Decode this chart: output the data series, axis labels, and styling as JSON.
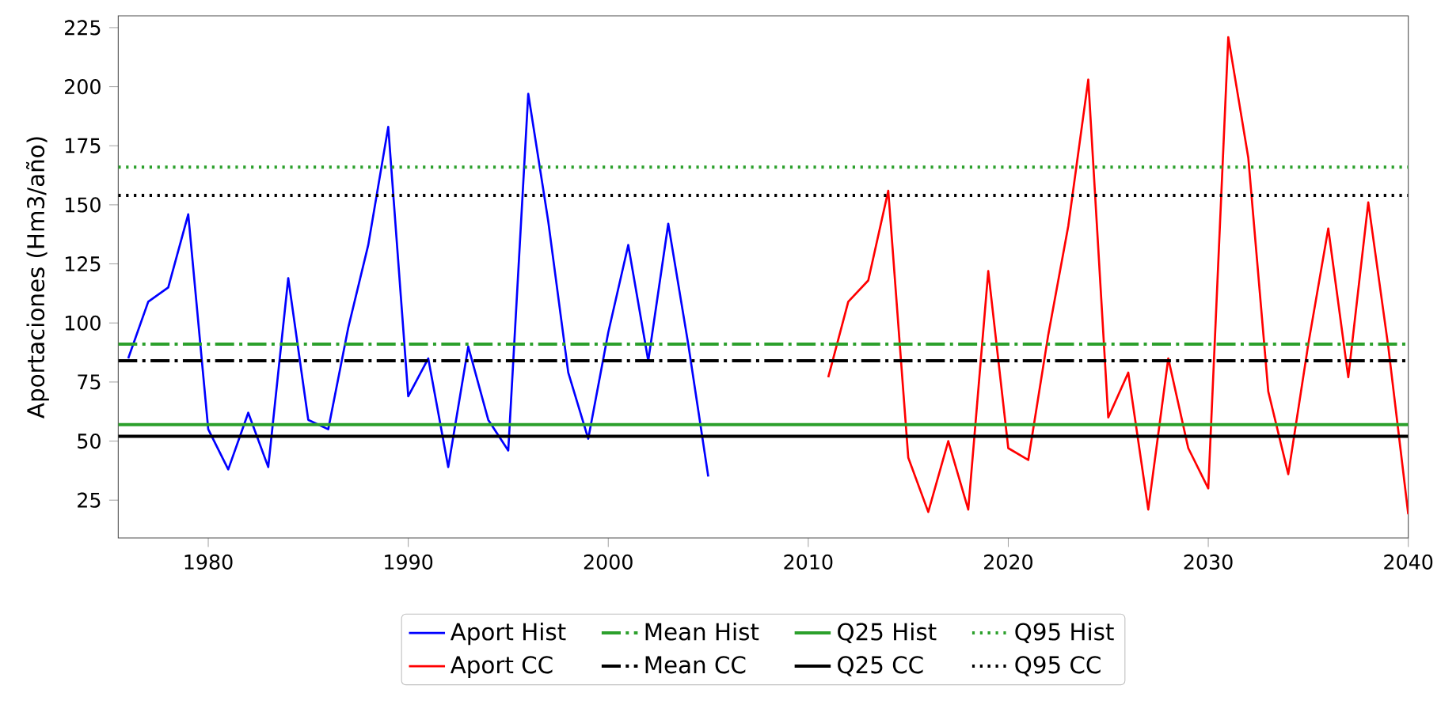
{
  "chart_data": {
    "type": "line",
    "ylabel": "Aportaciones (Hm3/año)",
    "xlim": [
      1975.5,
      2040
    ],
    "ylim": [
      9,
      230
    ],
    "xticks": [
      1980,
      1990,
      2000,
      2010,
      2020,
      2030,
      2040
    ],
    "yticks": [
      25,
      50,
      75,
      100,
      125,
      150,
      175,
      200,
      225
    ],
    "series": [
      {
        "name": "Aport Hist",
        "color": "#0000ff",
        "x": [
          1976,
          1977,
          1978,
          1979,
          1980,
          1981,
          1982,
          1983,
          1984,
          1985,
          1986,
          1987,
          1988,
          1989,
          1990,
          1991,
          1992,
          1993,
          1994,
          1995,
          1996,
          1997,
          1998,
          1999,
          2000,
          2001,
          2002,
          2003,
          2004,
          2005
        ],
        "values": [
          85,
          109,
          115,
          146,
          55,
          38,
          62,
          39,
          119,
          59,
          55,
          98,
          133,
          183,
          69,
          85,
          39,
          90,
          59,
          46,
          197,
          143,
          79,
          51,
          96,
          133,
          84,
          142,
          91,
          35
        ]
      },
      {
        "name": "Aport CC",
        "color": "#ff0000",
        "x": [
          2011,
          2012,
          2013,
          2014,
          2015,
          2016,
          2017,
          2018,
          2019,
          2020,
          2021,
          2022,
          2023,
          2024,
          2025,
          2026,
          2027,
          2028,
          2029,
          2030,
          2031,
          2032,
          2033,
          2034,
          2035,
          2036,
          2037,
          2038,
          2039,
          2040
        ],
        "values": [
          77,
          109,
          118,
          156,
          43,
          20,
          50,
          21,
          122,
          47,
          42,
          95,
          141,
          203,
          60,
          79,
          21,
          85,
          47,
          30,
          221,
          170,
          71,
          36,
          91,
          140,
          77,
          151,
          90,
          19
        ]
      }
    ],
    "ref_lines": [
      {
        "axis": "y",
        "value": 91,
        "label": "Mean Hist",
        "color": "#2ca02c",
        "line_style": "dashdot"
      },
      {
        "axis": "y",
        "value": 84,
        "label": "Mean CC",
        "color": "#000000",
        "line_style": "dashdot"
      },
      {
        "axis": "y",
        "value": 57,
        "label": "Q25 Hist",
        "color": "#2ca02c",
        "line_style": "solid"
      },
      {
        "axis": "y",
        "value": 52,
        "label": "Q25 CC",
        "color": "#000000",
        "line_style": "solid"
      },
      {
        "axis": "y",
        "value": 166,
        "label": "Q95 Hist",
        "color": "#2ca02c",
        "line_style": "dotted"
      },
      {
        "axis": "y",
        "value": 154,
        "label": "Q95 CC",
        "color": "#000000",
        "line_style": "dotted"
      }
    ],
    "legend": "bottom",
    "grid": false,
    "marker": "none"
  }
}
